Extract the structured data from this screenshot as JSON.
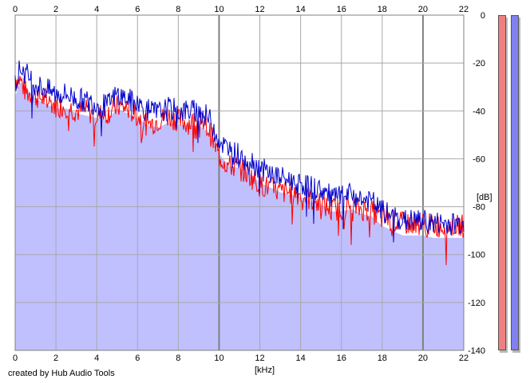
{
  "chart_data": {
    "type": "area",
    "title": "",
    "xlabel": "[kHz]",
    "ylabel": "[dB]",
    "xlim": [
      0,
      22
    ],
    "ylim": [
      -140,
      0
    ],
    "x_ticks": [
      0,
      2,
      4,
      6,
      8,
      10,
      12,
      14,
      16,
      18,
      20,
      22
    ],
    "y_ticks": [
      0,
      -20,
      -40,
      -60,
      -80,
      -100,
      -120,
      -140
    ],
    "grid": true,
    "fill_color": "#c0c0ff",
    "series": [
      {
        "color": "#0000cc",
        "x": [
          0,
          0.25,
          0.5,
          1,
          1.5,
          2,
          2.5,
          3,
          3.5,
          4,
          4.5,
          5,
          5.5,
          6,
          6.5,
          7,
          7.5,
          8,
          8.5,
          9,
          9.5,
          10,
          10.5,
          11,
          11.5,
          12,
          12.5,
          13,
          13.5,
          14,
          14.5,
          15,
          15.5,
          16,
          16.5,
          17,
          17.5,
          18,
          18.5,
          19,
          19.5,
          20,
          20.5,
          21,
          21.5,
          22
        ],
        "values": [
          -28,
          -22,
          -24,
          -29,
          -31,
          -33,
          -33,
          -35,
          -36,
          -37,
          -38,
          -33,
          -35,
          -37,
          -40,
          -41,
          -39,
          -40,
          -40,
          -40,
          -43,
          -52,
          -57,
          -58,
          -60,
          -64,
          -66,
          -68,
          -69,
          -70,
          -72,
          -73,
          -76,
          -76,
          -75,
          -77,
          -78,
          -82,
          -84,
          -86,
          -86,
          -86,
          -87,
          -87,
          -87,
          -87
        ]
      },
      {
        "color": "#ff0000",
        "x": [
          0,
          0.25,
          0.5,
          1,
          1.5,
          2,
          2.5,
          3,
          3.5,
          4,
          4.5,
          5,
          5.5,
          6,
          6.5,
          7,
          7.5,
          8,
          8.5,
          9,
          9.5,
          10,
          10.5,
          11,
          11.5,
          12,
          12.5,
          13,
          13.5,
          14,
          14.5,
          15,
          15.5,
          16,
          16.5,
          17,
          17.5,
          18,
          18.5,
          19,
          19.5,
          20,
          20.5,
          21,
          21.5,
          22
        ],
        "values": [
          -26,
          -27,
          -32,
          -34,
          -35,
          -38,
          -38,
          -40,
          -40,
          -42,
          -41,
          -38,
          -39,
          -42,
          -46,
          -44,
          -42,
          -44,
          -45,
          -44,
          -48,
          -59,
          -63,
          -64,
          -67,
          -71,
          -72,
          -74,
          -74,
          -75,
          -77,
          -79,
          -81,
          -81,
          -80,
          -81,
          -82,
          -85,
          -86,
          -87,
          -87,
          -87,
          -88,
          -88,
          -88,
          -88
        ]
      }
    ]
  },
  "meters": {
    "left_color": "#f08080",
    "right_color": "#8080f0"
  },
  "credit": "created by Hub Audio Tools"
}
